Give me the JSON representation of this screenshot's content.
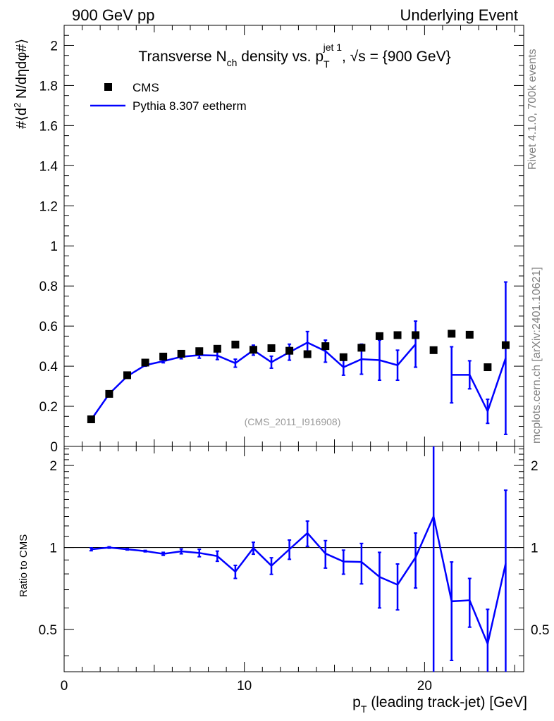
{
  "header": {
    "left": "900 GeV pp",
    "right": "Underlying Event"
  },
  "side": {
    "rivet": "Rivet 4.1.0,  700k events",
    "mcplots": "mcplots.cern.ch [arXiv:2401.10621]"
  },
  "colors": {
    "data": "#000000",
    "mc": "#0000ff",
    "frame": "#000000"
  },
  "chart_data": [
    {
      "type": "scatter",
      "panel": "main",
      "title": "Transverse N_ch density vs. p_T^jet 1, √s = {900 GeV}",
      "title_parts": {
        "t1": "Transverse N",
        "sub1": "ch",
        "t2": " density vs. p",
        "sub2": "T",
        "sup2": "jet 1",
        "t3": ", ",
        "sqrt": "√s",
        "t4": " = {900 GeV}"
      },
      "ylabel_parts": {
        "a": "#⟨d",
        "sup": "2",
        "b": " N/dηdφ#⟩"
      },
      "watermark": "(CMS_2011_I916908)",
      "xlim": [
        0,
        25.5
      ],
      "ylim": [
        0,
        2.1
      ],
      "yticks": [
        0,
        0.2,
        0.4,
        0.6,
        0.8,
        1,
        1.2,
        1.4,
        1.6,
        1.8,
        2
      ],
      "ytick_labels": [
        "0",
        "0.2",
        "0.4",
        "0.6",
        "0.8",
        "1",
        "1.2",
        "1.4",
        "1.6",
        "1.8",
        "2"
      ],
      "legend": {
        "position": "top-left",
        "data_label": "CMS",
        "mc_label": "Pythia 8.307 eetherm"
      },
      "x": [
        1.5,
        2.5,
        3.5,
        4.5,
        5.5,
        6.5,
        7.5,
        8.5,
        9.5,
        10.5,
        11.5,
        12.5,
        13.5,
        14.5,
        15.5,
        16.5,
        17.5,
        18.5,
        19.5,
        20.5,
        21.5,
        22.5,
        23.5,
        24.5
      ],
      "series": [
        {
          "name": "CMS",
          "values": [
            0.135,
            0.262,
            0.355,
            0.418,
            0.448,
            0.462,
            0.475,
            0.487,
            0.508,
            0.482,
            0.49,
            0.477,
            0.46,
            0.5,
            0.445,
            0.492,
            0.55,
            0.555,
            0.555,
            0.48,
            0.562,
            0.557,
            0.395,
            0.505
          ]
        },
        {
          "name": "Pythia 8.307 eetherm",
          "values": [
            0.133,
            0.262,
            0.35,
            0.405,
            0.425,
            0.447,
            0.455,
            0.453,
            0.415,
            0.48,
            0.42,
            0.47,
            0.518,
            0.475,
            0.395,
            0.435,
            0.43,
            0.405,
            0.51,
            null,
            0.357,
            0.357,
            0.175,
            0.44
          ],
          "errors": [
            0.005,
            0.005,
            0.005,
            0.005,
            0.008,
            0.01,
            0.015,
            0.02,
            0.02,
            0.025,
            0.03,
            0.04,
            0.055,
            0.055,
            0.04,
            0.075,
            0.1,
            0.075,
            0.115,
            null,
            0.14,
            0.07,
            0.06,
            0.38
          ]
        }
      ]
    },
    {
      "type": "line",
      "panel": "ratio",
      "ylabel": "Ratio to CMS",
      "xlabel_parts": {
        "a": "p",
        "sub": "T",
        "b": " (leading track-jet) [GeV]"
      },
      "xlim": [
        0,
        25.5
      ],
      "ylim": [
        0.35,
        2.35
      ],
      "scale": "log",
      "reference": 1,
      "xticks": [
        0,
        10,
        20
      ],
      "xtick_labels": [
        "0",
        "10",
        "20"
      ],
      "yticks": [
        0.5,
        1,
        2
      ],
      "ytick_labels": [
        "0.5",
        "1",
        "2"
      ],
      "x": [
        1.5,
        2.5,
        3.5,
        4.5,
        5.5,
        6.5,
        7.5,
        8.5,
        9.5,
        10.5,
        11.5,
        12.5,
        13.5,
        14.5,
        15.5,
        16.5,
        17.5,
        18.5,
        19.5,
        20.5,
        21.5,
        22.5,
        23.5,
        24.5
      ],
      "series": [
        {
          "name": "Pythia 8.307 eetherm / CMS",
          "values": [
            0.985,
            1.0,
            0.985,
            0.97,
            0.948,
            0.968,
            0.955,
            0.93,
            0.815,
            0.995,
            0.857,
            0.985,
            1.13,
            0.95,
            0.888,
            0.885,
            0.78,
            0.73,
            0.92,
            1.3,
            0.635,
            0.64,
            0.443,
            0.873
          ],
          "err_low": [
            0.012,
            0.006,
            0.006,
            0.006,
            0.012,
            0.02,
            0.03,
            0.04,
            0.045,
            0.05,
            0.06,
            0.08,
            0.12,
            0.11,
            0.09,
            0.15,
            0.18,
            0.14,
            0.21,
            0.96,
            0.25,
            0.13,
            0.15,
            0.75
          ],
          "err_high": [
            0.012,
            0.006,
            0.006,
            0.006,
            0.012,
            0.02,
            0.03,
            0.04,
            0.045,
            0.05,
            0.06,
            0.08,
            0.12,
            0.11,
            0.09,
            0.15,
            0.18,
            0.14,
            0.21,
            1.1,
            0.25,
            0.13,
            0.15,
            0.75
          ]
        }
      ]
    }
  ]
}
